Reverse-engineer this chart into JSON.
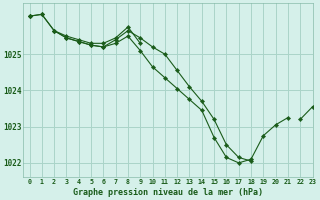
{
  "title": "Graphe pression niveau de la mer (hPa)",
  "background_color": "#d5f0ea",
  "grid_color": "#aad4c8",
  "line_color": "#1a5c1a",
  "marker_color": "#1a5c1a",
  "xlim": [
    -0.5,
    23
  ],
  "ylim": [
    1021.6,
    1026.4
  ],
  "yticks": [
    1022,
    1023,
    1024,
    1025
  ],
  "xticks": [
    0,
    1,
    2,
    3,
    4,
    5,
    6,
    7,
    8,
    9,
    10,
    11,
    12,
    13,
    14,
    15,
    16,
    17,
    18,
    19,
    20,
    21,
    22,
    23
  ],
  "series": [
    {
      "x": [
        0,
        1,
        2,
        3,
        4,
        5,
        6,
        7,
        8,
        9,
        10,
        11,
        12,
        13,
        14,
        15,
        16,
        17,
        18,
        19,
        20,
        21,
        22,
        23
      ],
      "y": [
        1026.05,
        1026.1,
        1025.65,
        1025.45,
        1025.35,
        1025.25,
        1025.2,
        1025.3,
        1025.5,
        1025.1,
        1024.65,
        1024.35,
        1024.05,
        1023.75,
        1023.45,
        1022.7,
        1022.15,
        1022.0,
        1022.1,
        1022.75,
        1023.05,
        1023.25,
        null,
        null
      ]
    },
    {
      "x": [
        0,
        1,
        2,
        3,
        4,
        5,
        6,
        7,
        8,
        9,
        10,
        11,
        12,
        13,
        14,
        15,
        16,
        17,
        18,
        19,
        20,
        21,
        22,
        23
      ],
      "y": [
        1026.05,
        null,
        1025.65,
        1025.45,
        1025.35,
        1025.25,
        1025.2,
        1025.4,
        1025.65,
        1025.45,
        1025.2,
        1025.0,
        1024.55,
        1024.1,
        1023.7,
        1023.2,
        1022.5,
        1022.15,
        1022.05,
        null,
        null,
        null,
        null,
        null
      ]
    },
    {
      "x": [
        0,
        1,
        2,
        3,
        4,
        5,
        6,
        7,
        8,
        9,
        10,
        11,
        12,
        13,
        14,
        15,
        16,
        17,
        18,
        19,
        20,
        21,
        22,
        23
      ],
      "y": [
        1026.05,
        1026.1,
        1025.65,
        1025.5,
        1025.4,
        1025.3,
        1025.3,
        1025.45,
        1025.75,
        1025.3,
        null,
        null,
        null,
        null,
        null,
        null,
        null,
        null,
        null,
        null,
        null,
        null,
        1023.2,
        1023.55
      ]
    }
  ]
}
